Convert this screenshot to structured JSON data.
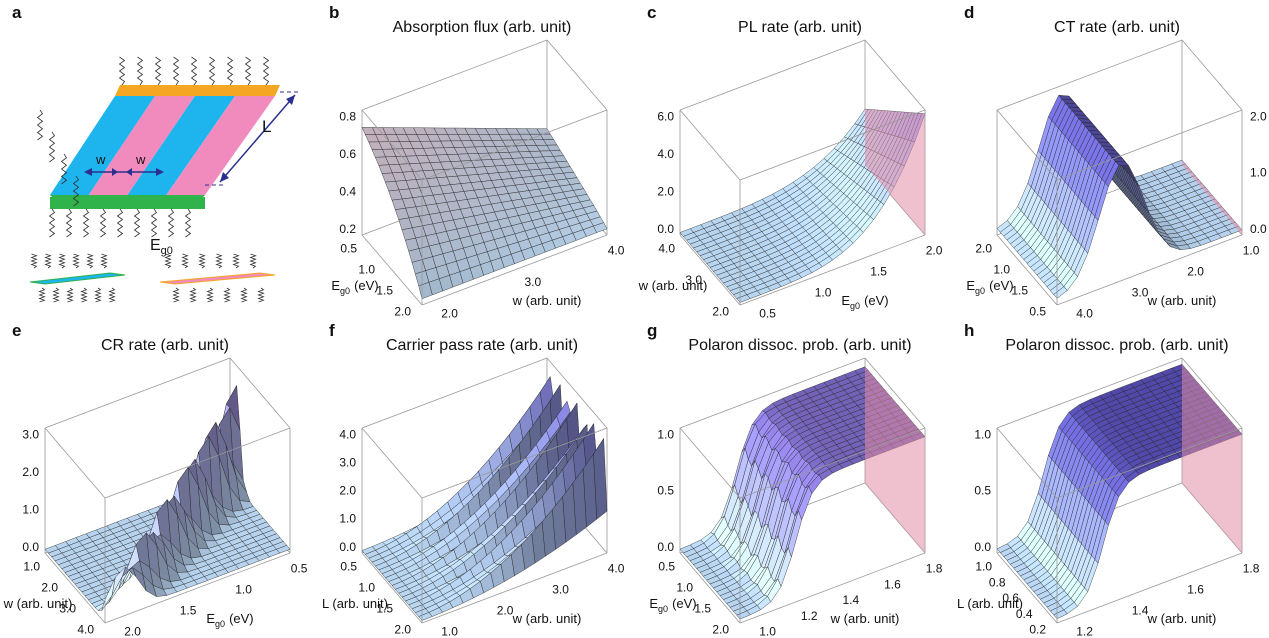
{
  "schematic": {
    "letter": "a",
    "w1": "w",
    "w2": "w",
    "L": "L",
    "energy": {
      "text": "E",
      "sub": "g0"
    }
  },
  "plots": [
    {
      "letter": "b",
      "title": "Absorption flux (arb. unit)",
      "z_ticks": [
        "0.2",
        "0.4",
        "0.6",
        "0.8"
      ],
      "axis1": {
        "label": {
          "text": "E",
          "sub": "g0",
          "unit": "(eV)"
        },
        "ticks": [
          "0.5",
          "1.0",
          "1.5",
          "2.0"
        ]
      },
      "axis2": {
        "label": {
          "text": "w (arb. unit)"
        },
        "ticks": [
          "2.0",
          "3.0",
          "4.0"
        ]
      }
    },
    {
      "letter": "c",
      "title": "PL rate (arb. unit)",
      "z_ticks": [
        "0.0",
        "2.0",
        "4.0",
        "6.0"
      ],
      "axis1": {
        "label": {
          "text": "w (arb. unit)"
        },
        "ticks": [
          "4.0",
          "3.0",
          "2.0"
        ]
      },
      "axis2": {
        "label": {
          "text": "E",
          "sub": "g0",
          "unit": "(eV)"
        },
        "ticks": [
          "0.5",
          "1.0",
          "1.5",
          "2.0"
        ]
      }
    },
    {
      "letter": "d",
      "title": "CT rate (arb. unit)",
      "z_ticks": [
        "0.0",
        "1.0",
        "2.0"
      ],
      "axis1": {
        "label": {
          "text": "E",
          "sub": "g0",
          "unit": "(eV)"
        },
        "ticks": [
          "2.0",
          "1.0",
          "1.5",
          "0.5"
        ]
      },
      "axis2": {
        "label": {
          "text": "w (arb. unit)"
        },
        "ticks": [
          "4.0",
          "3.0",
          "2.0",
          "1.0"
        ]
      }
    },
    {
      "letter": "e",
      "title": "CR rate (arb. unit)",
      "z_ticks": [
        "0.0",
        "1.0",
        "2.0",
        "3.0"
      ],
      "axis1": {
        "label": {
          "text": "w (arb. unit)"
        },
        "ticks": [
          "1.0",
          "2.0",
          "3.0",
          "4.0"
        ]
      },
      "axis2": {
        "label": {
          "text": "E",
          "sub": "g0",
          "unit": "(eV)"
        },
        "ticks": [
          "2.0",
          "1.5",
          "1.0",
          "0.5"
        ]
      }
    },
    {
      "letter": "f",
      "title": "Carrier pass rate (arb. unit)",
      "z_ticks": [
        "0.0",
        "1.0",
        "2.0",
        "3.0",
        "4.0"
      ],
      "axis1": {
        "label": {
          "text": "L (arb. unit)"
        },
        "ticks": [
          "0.5",
          "1.0",
          "1.5",
          "2.0"
        ]
      },
      "axis2": {
        "label": {
          "text": "w (arb. unit)"
        },
        "ticks": [
          "1.0",
          "2.0",
          "3.0",
          "4.0"
        ]
      }
    },
    {
      "letter": "g",
      "title": "Polaron dissoc. prob. (arb. unit)",
      "z_ticks": [
        "0.0",
        "0.5",
        "1.0"
      ],
      "axis1": {
        "label": {
          "text": "E",
          "sub": "g0",
          "unit": "(eV)"
        },
        "ticks": [
          "0.5",
          "1.0",
          "1.5",
          "2.0"
        ]
      },
      "axis2": {
        "label": {
          "text": "w (arb. unit)"
        },
        "ticks": [
          "1.0",
          "1.2",
          "1.4",
          "1.6",
          "1.8"
        ]
      }
    },
    {
      "letter": "h",
      "title": "Polaron dissoc. prob. (arb. unit)",
      "z_ticks": [
        "0.0",
        "0.5",
        "1.0"
      ],
      "axis1": {
        "label": {
          "text": "L (arb. unit)"
        },
        "ticks": [
          "1.0",
          "0.8",
          "0.6",
          "0.4",
          "0.2"
        ]
      },
      "axis2": {
        "label": {
          "text": "w (arb. unit)"
        },
        "ticks": [
          "1.2",
          "1.4",
          "1.6",
          "1.8"
        ]
      }
    }
  ]
}
